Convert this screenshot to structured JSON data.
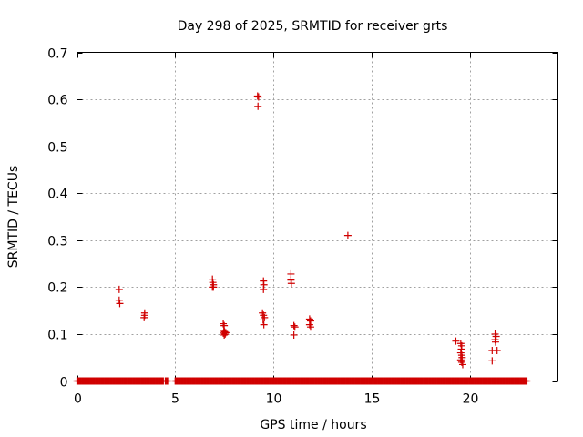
{
  "chart_data": {
    "type": "scatter",
    "title": "Day 298 of 2025, SRMTID for receiver grts",
    "xlabel": "GPS time / hours",
    "ylabel": "SRMTID / TECUs",
    "xlim": [
      0,
      24.5
    ],
    "ylim": [
      0,
      0.7
    ],
    "xticks": [
      0,
      5,
      10,
      15,
      20
    ],
    "yticks": [
      0,
      0.1,
      0.2,
      0.3,
      0.4,
      0.5,
      0.6,
      0.7
    ],
    "xtick_labels": [
      "0",
      "5",
      "10",
      "15",
      "20"
    ],
    "ytick_labels": [
      "0",
      "0.1",
      "0.2",
      "0.3",
      "0.4",
      "0.5",
      "0.6",
      "0.7"
    ],
    "grid": true,
    "marker": "+",
    "color": "#d00000",
    "baseline": {
      "y": 0,
      "segments": [
        [
          0,
          4.4
        ],
        [
          4.5,
          4.65
        ],
        [
          5.0,
          22.95
        ]
      ],
      "step": 0.04
    },
    "points": [
      [
        2.15,
        0.195
      ],
      [
        2.15,
        0.172
      ],
      [
        2.18,
        0.165
      ],
      [
        3.45,
        0.145
      ],
      [
        3.45,
        0.14
      ],
      [
        3.42,
        0.135
      ],
      [
        6.9,
        0.217
      ],
      [
        6.92,
        0.21
      ],
      [
        6.95,
        0.205
      ],
      [
        6.9,
        0.2
      ],
      [
        6.95,
        0.2
      ],
      [
        7.45,
        0.122
      ],
      [
        7.5,
        0.118
      ],
      [
        7.48,
        0.108
      ],
      [
        7.52,
        0.105
      ],
      [
        7.45,
        0.102
      ],
      [
        7.55,
        0.1
      ],
      [
        7.5,
        0.098
      ],
      [
        7.58,
        0.103
      ],
      [
        9.2,
        0.607
      ],
      [
        9.25,
        0.605
      ],
      [
        9.22,
        0.585
      ],
      [
        9.5,
        0.213
      ],
      [
        9.52,
        0.205
      ],
      [
        9.5,
        0.195
      ],
      [
        9.45,
        0.145
      ],
      [
        9.5,
        0.14
      ],
      [
        9.55,
        0.135
      ],
      [
        9.48,
        0.13
      ],
      [
        9.52,
        0.12
      ],
      [
        10.9,
        0.228
      ],
      [
        10.9,
        0.215
      ],
      [
        10.92,
        0.208
      ],
      [
        11.05,
        0.118
      ],
      [
        11.1,
        0.115
      ],
      [
        11.05,
        0.098
      ],
      [
        11.85,
        0.132
      ],
      [
        11.9,
        0.128
      ],
      [
        11.85,
        0.12
      ],
      [
        11.9,
        0.115
      ],
      [
        13.8,
        0.31
      ],
      [
        19.3,
        0.085
      ],
      [
        19.55,
        0.08
      ],
      [
        19.6,
        0.075
      ],
      [
        19.58,
        0.068
      ],
      [
        19.55,
        0.06
      ],
      [
        19.6,
        0.055
      ],
      [
        19.62,
        0.05
      ],
      [
        19.55,
        0.045
      ],
      [
        19.6,
        0.04
      ],
      [
        19.65,
        0.035
      ],
      [
        21.15,
        0.065
      ],
      [
        21.15,
        0.043
      ],
      [
        21.3,
        0.1
      ],
      [
        21.35,
        0.095
      ],
      [
        21.3,
        0.088
      ],
      [
        21.32,
        0.083
      ],
      [
        21.4,
        0.065
      ]
    ]
  }
}
